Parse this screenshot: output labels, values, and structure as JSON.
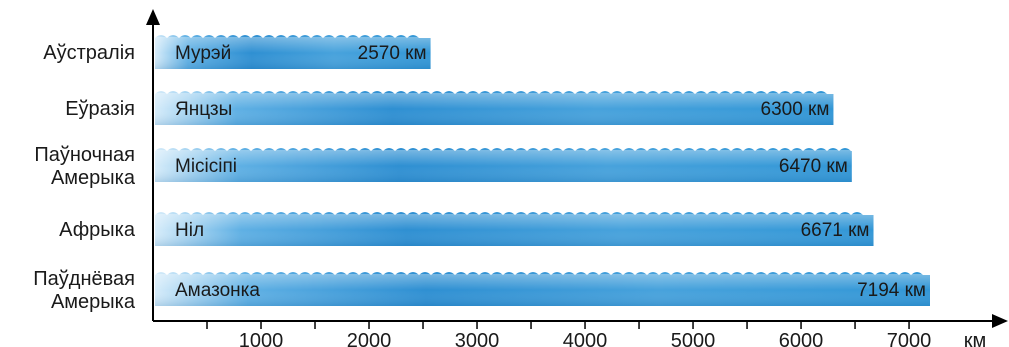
{
  "chart_data": {
    "type": "bar",
    "orientation": "horizontal",
    "continents": [
      "Аўстралія",
      "Еўразія",
      "Паўночная Амерыка",
      "Афрыка",
      "Паўднёвая Амерыка"
    ],
    "rivers": [
      "Мурэй",
      "Янцзы",
      "Місісіпі",
      "Ніл",
      "Амазонка"
    ],
    "values": [
      2570,
      6300,
      6470,
      6671,
      7194
    ],
    "value_labels": [
      "2570 км",
      "6300 км",
      "6470 км",
      "6671 км",
      "7194 км"
    ],
    "xticks": [
      1000,
      2000,
      3000,
      4000,
      5000,
      6000,
      7000
    ],
    "xtick_labels": [
      "1000",
      "2000",
      "3000",
      "4000",
      "5000",
      "6000",
      "7000"
    ],
    "xlabel": "км",
    "xlim": [
      0,
      7300
    ],
    "grid": false,
    "colors": {
      "bar_dark": "#2f8ed0",
      "bar_light": "#cfe8f8",
      "axis": "#000000",
      "bar_text": "#1a1a1a"
    }
  }
}
